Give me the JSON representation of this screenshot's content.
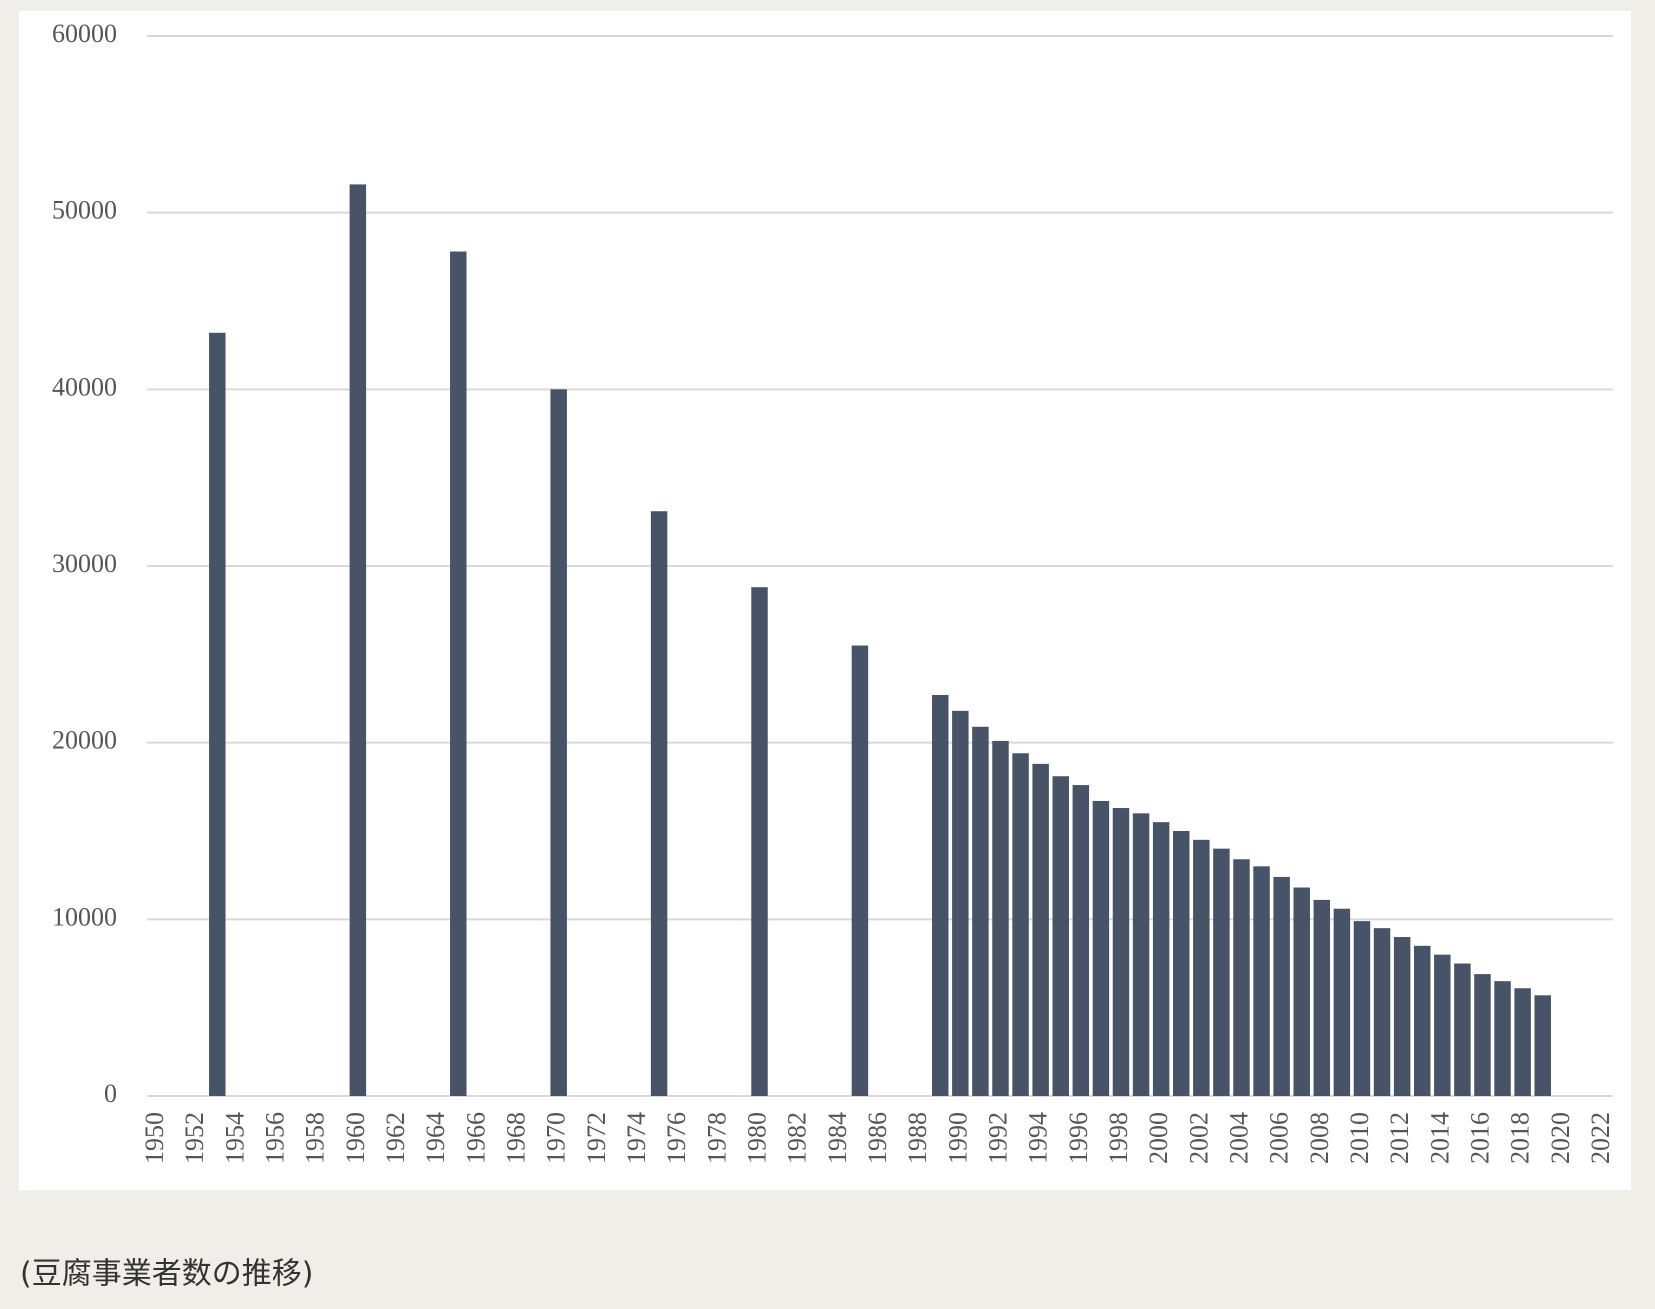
{
  "chart_data": {
    "type": "bar",
    "x": [
      1953,
      1960,
      1965,
      1970,
      1975,
      1980,
      1985,
      1989,
      1990,
      1991,
      1992,
      1993,
      1994,
      1995,
      1996,
      1997,
      1998,
      1999,
      2000,
      2001,
      2002,
      2003,
      2004,
      2005,
      2006,
      2007,
      2008,
      2009,
      2010,
      2011,
      2012,
      2013,
      2014,
      2015,
      2016,
      2017,
      2018,
      2019
    ],
    "values": [
      43200,
      51600,
      47800,
      40000,
      33100,
      28800,
      25500,
      22700,
      21800,
      20900,
      20100,
      19400,
      18800,
      18100,
      17600,
      16700,
      16300,
      16000,
      15500,
      15000,
      14500,
      14000,
      13400,
      13000,
      12400,
      11800,
      11100,
      10600,
      9900,
      9500,
      9000,
      8500,
      8000,
      7500,
      6900,
      6500,
      6100,
      5700
    ],
    "color": "#475366",
    "xlim": [
      1949.5,
      2022.5
    ],
    "xticks": [
      1950,
      1952,
      1954,
      1956,
      1958,
      1960,
      1962,
      1964,
      1966,
      1968,
      1970,
      1972,
      1974,
      1976,
      1978,
      1980,
      1982,
      1984,
      1986,
      1988,
      1990,
      1992,
      1994,
      1996,
      1998,
      2000,
      2002,
      2004,
      2006,
      2008,
      2010,
      2012,
      2014,
      2016,
      2018,
      2020,
      2022
    ],
    "ylim": [
      0,
      60000
    ],
    "yticks": [
      0,
      10000,
      20000,
      30000,
      40000,
      50000,
      60000
    ],
    "grid": true,
    "caption": "(豆腐事業者数の推移)"
  }
}
